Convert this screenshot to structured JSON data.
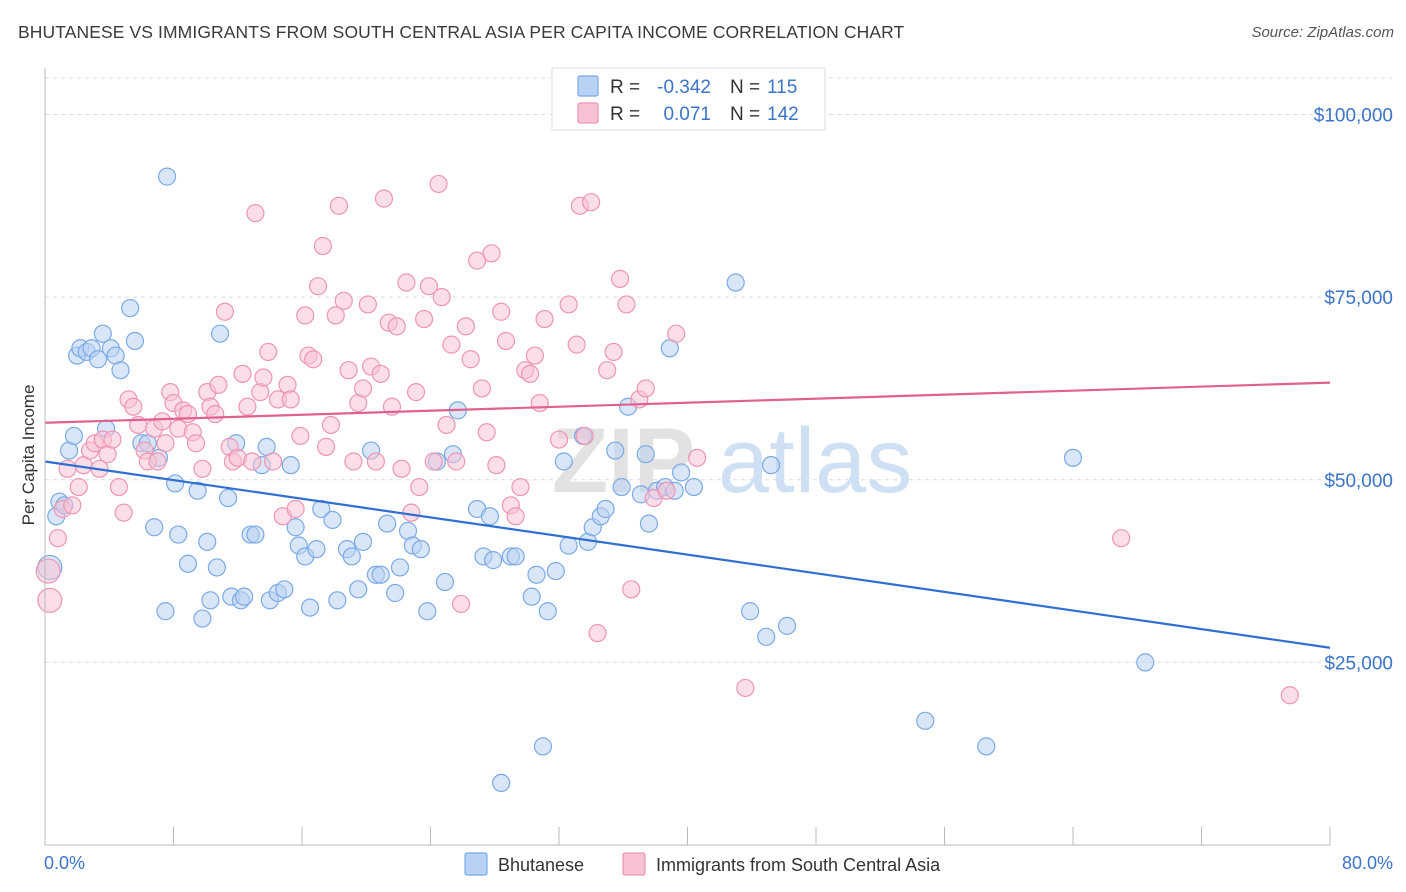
{
  "title": "BHUTANESE VS IMMIGRANTS FROM SOUTH CENTRAL ASIA PER CAPITA INCOME CORRELATION CHART",
  "source": "Source: ZipAtlas.com",
  "watermark": {
    "zip": "ZIP",
    "atlas": "atlas"
  },
  "chart_data": {
    "type": "scatter",
    "ylabel": "Per Capita Income",
    "xlim": [
      0,
      80
    ],
    "ylim": [
      0,
      105000
    ],
    "x_tick_labels": [
      "0.0%",
      "80.0%"
    ],
    "y_ticks": [
      25000,
      50000,
      75000,
      100000
    ],
    "y_tick_labels": [
      "$25,000",
      "$50,000",
      "$75,000",
      "$100,000"
    ],
    "grid": true,
    "legend_position": "top-center",
    "stats": [
      {
        "r_label": "R =",
        "r": "-0.342",
        "n_label": "N =",
        "n": "115"
      },
      {
        "r_label": "R =",
        "r": "0.071",
        "n_label": "N =",
        "n": "142"
      }
    ],
    "series": [
      {
        "name": "Bhutanese",
        "color": "#7aaae6",
        "fill": "#b9d1f2",
        "line_color": "#2f6fd1",
        "trend": [
          [
            0,
            52500
          ],
          [
            80,
            27000
          ]
        ],
        "points": [
          [
            0.3,
            38000
          ],
          [
            0.7,
            45000
          ],
          [
            0.9,
            47000
          ],
          [
            1.2,
            46500
          ],
          [
            1.5,
            54000
          ],
          [
            1.8,
            56000
          ],
          [
            2.0,
            67000
          ],
          [
            2.2,
            68000
          ],
          [
            2.6,
            67500
          ],
          [
            2.9,
            68000
          ],
          [
            3.3,
            66500
          ],
          [
            3.6,
            70000
          ],
          [
            3.8,
            57000
          ],
          [
            4.1,
            68000
          ],
          [
            4.4,
            67000
          ],
          [
            4.7,
            65000
          ],
          [
            5.3,
            73500
          ],
          [
            5.6,
            69000
          ],
          [
            6.0,
            55000
          ],
          [
            6.4,
            55000
          ],
          [
            6.8,
            43500
          ],
          [
            7.1,
            53000
          ],
          [
            7.5,
            32000
          ],
          [
            7.6,
            91500
          ],
          [
            8.1,
            49500
          ],
          [
            8.3,
            42500
          ],
          [
            8.9,
            38500
          ],
          [
            9.5,
            48500
          ],
          [
            9.8,
            31000
          ],
          [
            10.1,
            41500
          ],
          [
            10.3,
            33500
          ],
          [
            10.7,
            38000
          ],
          [
            10.9,
            70000
          ],
          [
            11.4,
            47500
          ],
          [
            11.6,
            34000
          ],
          [
            11.9,
            55000
          ],
          [
            12.2,
            33500
          ],
          [
            12.4,
            34000
          ],
          [
            12.8,
            42500
          ],
          [
            13.1,
            42500
          ],
          [
            13.5,
            52000
          ],
          [
            13.8,
            54500
          ],
          [
            14.0,
            33500
          ],
          [
            14.5,
            34500
          ],
          [
            14.9,
            35000
          ],
          [
            15.3,
            52000
          ],
          [
            15.6,
            43500
          ],
          [
            15.8,
            41000
          ],
          [
            16.2,
            39500
          ],
          [
            16.5,
            32500
          ],
          [
            16.9,
            40500
          ],
          [
            17.2,
            46000
          ],
          [
            17.9,
            44500
          ],
          [
            18.2,
            33500
          ],
          [
            18.8,
            40500
          ],
          [
            19.1,
            39500
          ],
          [
            19.5,
            35000
          ],
          [
            19.8,
            41500
          ],
          [
            20.3,
            54000
          ],
          [
            20.6,
            37000
          ],
          [
            20.9,
            37000
          ],
          [
            21.3,
            44000
          ],
          [
            21.8,
            34500
          ],
          [
            22.1,
            38000
          ],
          [
            22.6,
            43000
          ],
          [
            22.9,
            41000
          ],
          [
            23.4,
            40500
          ],
          [
            23.8,
            32000
          ],
          [
            24.4,
            52500
          ],
          [
            24.9,
            36000
          ],
          [
            25.4,
            53500
          ],
          [
            25.7,
            59500
          ],
          [
            26.9,
            46000
          ],
          [
            27.3,
            39500
          ],
          [
            27.7,
            45000
          ],
          [
            27.9,
            39000
          ],
          [
            28.4,
            8500
          ],
          [
            29.0,
            39500
          ],
          [
            29.3,
            39500
          ],
          [
            30.3,
            34000
          ],
          [
            30.6,
            37000
          ],
          [
            31.0,
            13500
          ],
          [
            31.3,
            32000
          ],
          [
            31.8,
            37500
          ],
          [
            32.3,
            52500
          ],
          [
            32.6,
            41000
          ],
          [
            33.5,
            56000
          ],
          [
            33.8,
            41500
          ],
          [
            34.1,
            43500
          ],
          [
            34.6,
            45000
          ],
          [
            34.9,
            46000
          ],
          [
            35.5,
            54000
          ],
          [
            35.9,
            49000
          ],
          [
            36.3,
            60000
          ],
          [
            37.1,
            48000
          ],
          [
            37.4,
            53500
          ],
          [
            37.6,
            44000
          ],
          [
            38.1,
            48500
          ],
          [
            38.6,
            49000
          ],
          [
            38.9,
            68000
          ],
          [
            39.2,
            48500
          ],
          [
            39.6,
            51000
          ],
          [
            40.4,
            49000
          ],
          [
            43.0,
            77000
          ],
          [
            43.9,
            32000
          ],
          [
            44.9,
            28500
          ],
          [
            45.2,
            52000
          ],
          [
            46.2,
            30000
          ],
          [
            54.8,
            17000
          ],
          [
            58.6,
            13500
          ],
          [
            64.0,
            53000
          ],
          [
            68.5,
            25000
          ]
        ]
      },
      {
        "name": "Immigrants from South Central Asia",
        "color": "#ee95b4",
        "fill": "#f7c3d4",
        "line_color": "#e0608e",
        "trend": [
          [
            0,
            57800
          ],
          [
            80,
            63300
          ]
        ],
        "points": [
          [
            0.2,
            37500
          ],
          [
            0.3,
            33500
          ],
          [
            0.8,
            42000
          ],
          [
            1.1,
            46000
          ],
          [
            1.4,
            51500
          ],
          [
            1.7,
            46500
          ],
          [
            2.1,
            49000
          ],
          [
            2.4,
            52000
          ],
          [
            2.8,
            54000
          ],
          [
            3.1,
            55000
          ],
          [
            3.4,
            51500
          ],
          [
            3.6,
            55500
          ],
          [
            3.9,
            53500
          ],
          [
            4.2,
            55500
          ],
          [
            4.6,
            49000
          ],
          [
            4.9,
            45500
          ],
          [
            5.2,
            61000
          ],
          [
            5.5,
            60000
          ],
          [
            5.8,
            57500
          ],
          [
            6.2,
            54000
          ],
          [
            6.4,
            52500
          ],
          [
            6.8,
            57000
          ],
          [
            7.0,
            52500
          ],
          [
            7.3,
            58000
          ],
          [
            7.5,
            55000
          ],
          [
            7.8,
            62000
          ],
          [
            8.0,
            60500
          ],
          [
            8.3,
            57000
          ],
          [
            8.6,
            59500
          ],
          [
            8.9,
            59000
          ],
          [
            9.2,
            56500
          ],
          [
            9.4,
            55000
          ],
          [
            9.8,
            51500
          ],
          [
            10.1,
            62000
          ],
          [
            10.3,
            60000
          ],
          [
            10.6,
            59000
          ],
          [
            10.8,
            63000
          ],
          [
            11.2,
            73000
          ],
          [
            11.5,
            54500
          ],
          [
            11.7,
            52500
          ],
          [
            12.0,
            53000
          ],
          [
            12.3,
            64500
          ],
          [
            12.6,
            60000
          ],
          [
            12.9,
            52500
          ],
          [
            13.1,
            86500
          ],
          [
            13.4,
            62000
          ],
          [
            13.6,
            64000
          ],
          [
            13.9,
            67500
          ],
          [
            14.2,
            52500
          ],
          [
            14.5,
            61000
          ],
          [
            14.8,
            45000
          ],
          [
            15.1,
            63000
          ],
          [
            15.3,
            61000
          ],
          [
            15.6,
            46000
          ],
          [
            15.9,
            56000
          ],
          [
            16.2,
            72500
          ],
          [
            16.4,
            67000
          ],
          [
            16.7,
            66500
          ],
          [
            17.0,
            76500
          ],
          [
            17.3,
            82000
          ],
          [
            17.5,
            54500
          ],
          [
            17.8,
            57500
          ],
          [
            18.1,
            72500
          ],
          [
            18.3,
            87500
          ],
          [
            18.6,
            74500
          ],
          [
            18.9,
            65000
          ],
          [
            19.2,
            52500
          ],
          [
            19.5,
            60500
          ],
          [
            19.8,
            62500
          ],
          [
            20.1,
            74000
          ],
          [
            20.3,
            65500
          ],
          [
            20.6,
            52500
          ],
          [
            20.9,
            64500
          ],
          [
            21.1,
            88500
          ],
          [
            21.4,
            71500
          ],
          [
            21.6,
            60000
          ],
          [
            21.9,
            71000
          ],
          [
            22.2,
            51500
          ],
          [
            22.5,
            77000
          ],
          [
            22.8,
            45500
          ],
          [
            23.1,
            62000
          ],
          [
            23.3,
            49000
          ],
          [
            23.6,
            72000
          ],
          [
            23.9,
            76500
          ],
          [
            24.2,
            52500
          ],
          [
            24.5,
            90500
          ],
          [
            24.7,
            75000
          ],
          [
            25.0,
            57500
          ],
          [
            25.3,
            68500
          ],
          [
            25.6,
            52500
          ],
          [
            25.9,
            33000
          ],
          [
            26.2,
            71000
          ],
          [
            26.5,
            66500
          ],
          [
            26.9,
            80000
          ],
          [
            27.2,
            62500
          ],
          [
            27.5,
            56500
          ],
          [
            27.8,
            81000
          ],
          [
            28.1,
            52000
          ],
          [
            28.4,
            73000
          ],
          [
            28.7,
            69000
          ],
          [
            29.0,
            46500
          ],
          [
            29.3,
            45000
          ],
          [
            29.6,
            49000
          ],
          [
            29.9,
            65000
          ],
          [
            30.2,
            64500
          ],
          [
            30.5,
            67000
          ],
          [
            30.8,
            60500
          ],
          [
            31.1,
            72000
          ],
          [
            32.0,
            55500
          ],
          [
            32.6,
            74000
          ],
          [
            33.1,
            68500
          ],
          [
            33.3,
            87500
          ],
          [
            33.6,
            56000
          ],
          [
            34.0,
            88000
          ],
          [
            34.4,
            29000
          ],
          [
            35.0,
            65000
          ],
          [
            35.4,
            67500
          ],
          [
            35.8,
            77500
          ],
          [
            36.2,
            74000
          ],
          [
            36.5,
            35000
          ],
          [
            37.0,
            61000
          ],
          [
            37.4,
            62500
          ],
          [
            37.9,
            47500
          ],
          [
            38.7,
            48500
          ],
          [
            39.3,
            70000
          ],
          [
            40.6,
            53000
          ],
          [
            43.6,
            21500
          ],
          [
            67.0,
            42000
          ],
          [
            77.5,
            20500
          ]
        ]
      }
    ]
  }
}
